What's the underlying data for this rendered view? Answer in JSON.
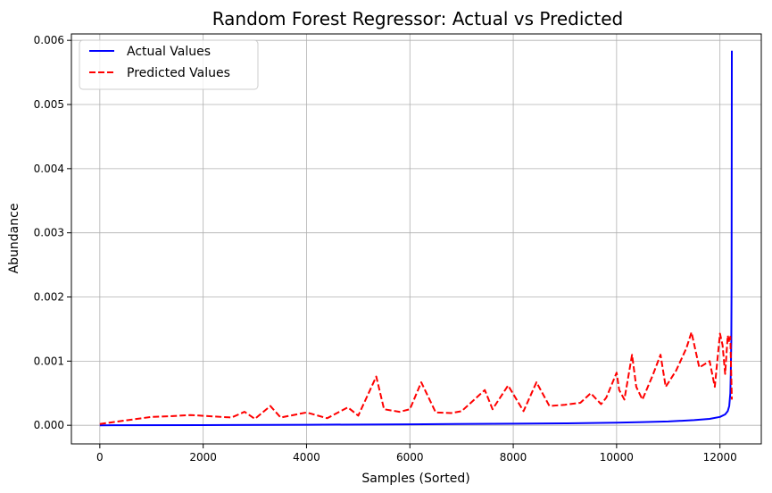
{
  "chart_data": {
    "type": "line",
    "title": "Random Forest Regressor: Actual vs Predicted",
    "xlabel": "Samples (Sorted)",
    "ylabel": "Abundance",
    "xlim": [
      -550,
      12800
    ],
    "ylim": [
      -0.00029,
      0.0061
    ],
    "xticks": [
      0,
      2000,
      4000,
      6000,
      8000,
      10000,
      12000
    ],
    "yticks": [
      0.0,
      0.001,
      0.002,
      0.003,
      0.004,
      0.005,
      0.006
    ],
    "ytick_labels": [
      "0.000",
      "0.001",
      "0.002",
      "0.003",
      "0.004",
      "0.005",
      "0.006"
    ],
    "grid": true,
    "legend": "top-left",
    "colors": {
      "actual": "#0000ff",
      "predicted": "#ff0000"
    },
    "series": [
      {
        "name": "Actual Values",
        "style": "solid",
        "x": [
          0,
          2000,
          4000,
          6000,
          8000,
          9000,
          10000,
          10500,
          11000,
          11500,
          11800,
          12000,
          12100,
          12150,
          12180,
          12200,
          12210,
          12220,
          12225,
          12230
        ],
        "y": [
          0.0,
          3e-06,
          8e-06,
          1.5e-05,
          2.5e-05,
          3e-05,
          4e-05,
          5e-05,
          6e-05,
          8e-05,
          0.0001,
          0.00013,
          0.00017,
          0.00022,
          0.0003,
          0.0005,
          0.0008,
          0.0013,
          0.0022,
          0.00584
        ]
      },
      {
        "name": "Predicted Values",
        "style": "dashed",
        "x": [
          0,
          1000,
          1350,
          1750,
          2550,
          2800,
          3000,
          3300,
          3500,
          4000,
          4400,
          4800,
          5000,
          5350,
          5500,
          5800,
          6000,
          6220,
          6500,
          6800,
          7000,
          7450,
          7600,
          7900,
          8200,
          8450,
          8700,
          9000,
          9300,
          9500,
          9700,
          9800,
          10000,
          10050,
          10150,
          10300,
          10380,
          10500,
          10700,
          10850,
          10950,
          11150,
          11350,
          11450,
          11600,
          11800,
          11900,
          12000,
          12050,
          12100,
          12150,
          12180,
          12200,
          12230
        ],
        "y": [
          2e-05,
          0.00013,
          0.00014,
          0.00016,
          0.00012,
          0.00021,
          0.0001,
          0.0003,
          0.00012,
          0.0002,
          0.00011,
          0.00028,
          0.00015,
          0.00076,
          0.00025,
          0.00021,
          0.00025,
          0.00067,
          0.0002,
          0.00019,
          0.00022,
          0.00055,
          0.00025,
          0.00062,
          0.00022,
          0.00067,
          0.0003,
          0.00032,
          0.00035,
          0.0005,
          0.00033,
          0.00043,
          0.00082,
          0.00055,
          0.0004,
          0.0011,
          0.0006,
          0.0004,
          0.00078,
          0.0011,
          0.0006,
          0.00085,
          0.0012,
          0.00145,
          0.0009,
          0.001,
          0.0006,
          0.00143,
          0.00125,
          0.0008,
          0.0014,
          0.0013,
          0.00138,
          0.0004
        ]
      }
    ]
  }
}
